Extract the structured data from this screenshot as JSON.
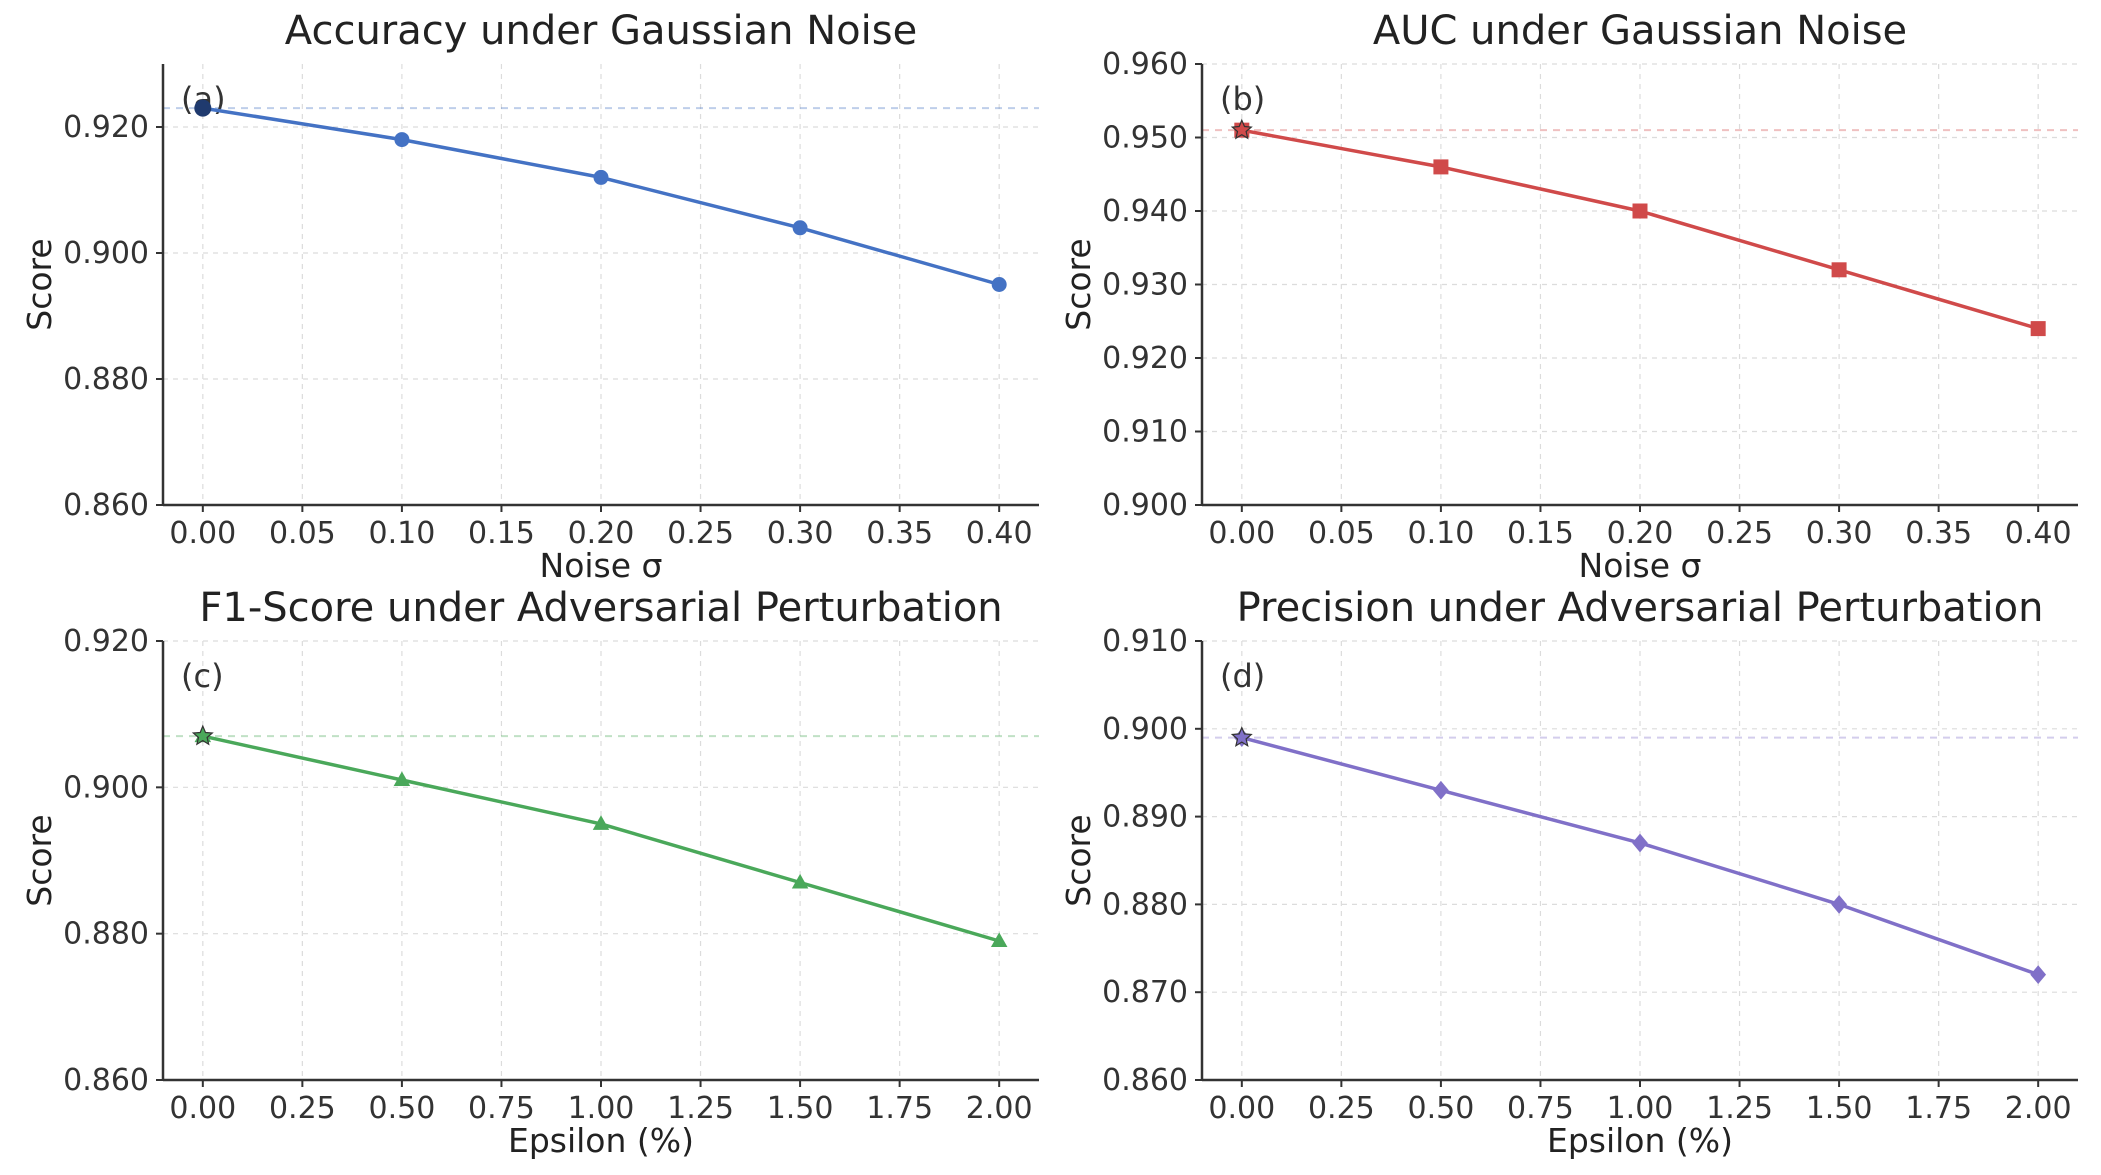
{
  "chart_data": [
    {
      "type": "line",
      "panel": "(a)",
      "title": "Accuracy under Gaussian Noise",
      "xlabel": "Noise σ",
      "ylabel": "Score",
      "x": [
        0.0,
        0.1,
        0.2,
        0.3,
        0.4
      ],
      "series": [
        {
          "name": "Accuracy",
          "values": [
            0.923,
            0.918,
            0.912,
            0.904,
            0.895
          ]
        }
      ],
      "marker": "circle",
      "color": "#4472c4",
      "reference_line": 0.923,
      "xlim": [
        -0.02,
        0.42
      ],
      "ylim": [
        0.86,
        0.93
      ],
      "xticks": [
        0.0,
        0.05,
        0.1,
        0.15,
        0.2,
        0.25,
        0.3,
        0.35,
        0.4
      ],
      "xtick_labels": [
        "0.00",
        "0.05",
        "0.10",
        "0.15",
        "0.20",
        "0.25",
        "0.30",
        "0.35",
        "0.40"
      ],
      "yticks": [
        0.86,
        0.88,
        0.9,
        0.92
      ],
      "ytick_labels": [
        "0.860",
        "0.880",
        "0.900",
        "0.920"
      ],
      "grid": true
    },
    {
      "type": "line",
      "panel": "(b)",
      "title": "AUC under Gaussian Noise",
      "xlabel": "Noise σ",
      "ylabel": "Score",
      "x": [
        0.0,
        0.1,
        0.2,
        0.3,
        0.4
      ],
      "series": [
        {
          "name": "AUC",
          "values": [
            0.951,
            0.946,
            0.94,
            0.932,
            0.924
          ]
        }
      ],
      "marker": "square",
      "color": "#d04a4a",
      "reference_line": 0.951,
      "xlim": [
        -0.02,
        0.42
      ],
      "ylim": [
        0.9,
        0.96
      ],
      "xticks": [
        0.0,
        0.05,
        0.1,
        0.15,
        0.2,
        0.25,
        0.3,
        0.35,
        0.4
      ],
      "xtick_labels": [
        "0.00",
        "0.05",
        "0.10",
        "0.15",
        "0.20",
        "0.25",
        "0.30",
        "0.35",
        "0.40"
      ],
      "yticks": [
        0.9,
        0.91,
        0.92,
        0.93,
        0.94,
        0.95,
        0.96
      ],
      "ytick_labels": [
        "0.900",
        "0.910",
        "0.920",
        "0.930",
        "0.940",
        "0.950",
        "0.960"
      ],
      "grid": true
    },
    {
      "type": "line",
      "panel": "(c)",
      "title": "F1-Score under Adversarial Perturbation",
      "xlabel": "Epsilon (%)",
      "ylabel": "Score",
      "x": [
        0.0,
        0.5,
        1.0,
        1.5,
        2.0
      ],
      "series": [
        {
          "name": "F1-Score",
          "values": [
            0.907,
            0.901,
            0.895,
            0.887,
            0.879
          ]
        }
      ],
      "marker": "triangle",
      "color": "#4aa85a",
      "reference_line": 0.907,
      "xlim": [
        -0.1,
        2.1
      ],
      "ylim": [
        0.86,
        0.92
      ],
      "xticks": [
        0.0,
        0.25,
        0.5,
        0.75,
        1.0,
        1.25,
        1.5,
        1.75,
        2.0
      ],
      "xtick_labels": [
        "0.00",
        "0.25",
        "0.50",
        "0.75",
        "1.00",
        "1.25",
        "1.50",
        "1.75",
        "2.00"
      ],
      "yticks": [
        0.86,
        0.88,
        0.9,
        0.92
      ],
      "ytick_labels": [
        "0.860",
        "0.880",
        "0.900",
        "0.920"
      ],
      "grid": true
    },
    {
      "type": "line",
      "panel": "(d)",
      "title": "Precision under Adversarial Perturbation",
      "xlabel": "Epsilon (%)",
      "ylabel": "Score",
      "x": [
        0.0,
        0.5,
        1.0,
        1.5,
        2.0
      ],
      "series": [
        {
          "name": "Precision",
          "values": [
            0.899,
            0.893,
            0.887,
            0.88,
            0.872
          ]
        }
      ],
      "marker": "diamond",
      "color": "#8070c8",
      "reference_line": 0.899,
      "xlim": [
        -0.1,
        2.1
      ],
      "ylim": [
        0.86,
        0.91
      ],
      "xticks": [
        0.0,
        0.25,
        0.5,
        0.75,
        1.0,
        1.25,
        1.5,
        1.75,
        2.0
      ],
      "xtick_labels": [
        "0.00",
        "0.25",
        "0.50",
        "0.75",
        "1.00",
        "1.25",
        "1.50",
        "1.75",
        "2.00"
      ],
      "yticks": [
        0.86,
        0.87,
        0.88,
        0.89,
        0.9,
        0.91
      ],
      "ytick_labels": [
        "0.860",
        "0.870",
        "0.880",
        "0.890",
        "0.900",
        "0.910"
      ],
      "grid": true
    }
  ]
}
